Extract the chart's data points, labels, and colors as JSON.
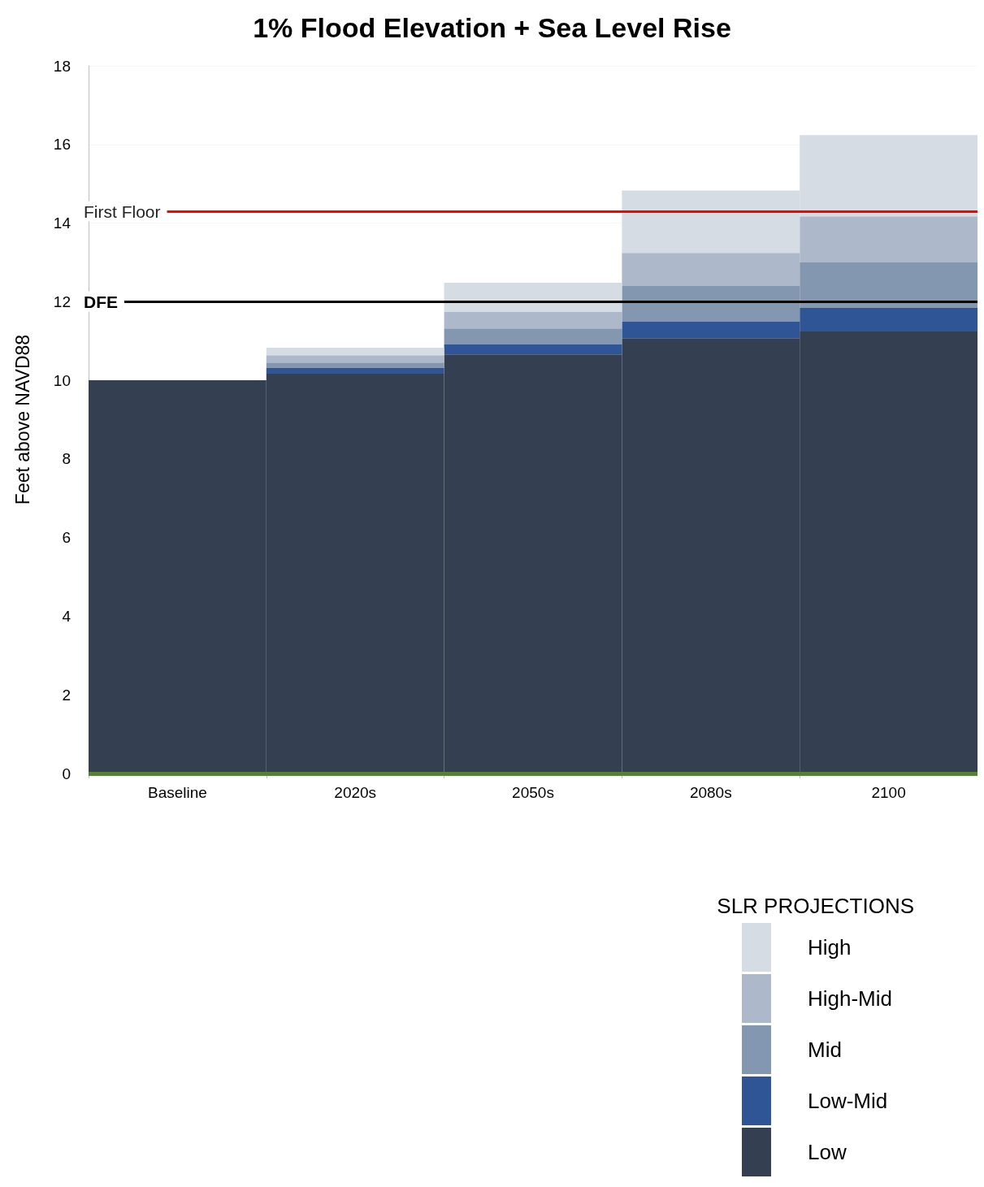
{
  "chart_data": {
    "type": "bar",
    "stacked": true,
    "title": "1% Flood Elevation + Sea Level Rise",
    "ylabel": "Feet above NAVD88",
    "legend_title": "SLR PROJECTIONS",
    "legend": "bottom right",
    "grid": "y",
    "categories": [
      "Baseline",
      "2020s",
      "2050s",
      "2080s",
      "2100"
    ],
    "ylim": [
      0,
      18
    ],
    "yticks": [
      0,
      2,
      4,
      6,
      8,
      10,
      12,
      14,
      16,
      18
    ],
    "series": [
      {
        "name": "Low",
        "color": "#343f51",
        "values": [
          10.0,
          10.17,
          10.66,
          11.07,
          11.24
        ]
      },
      {
        "name": "Low-Mid",
        "color": "#2f5597",
        "values": [
          0,
          0.14,
          0.25,
          0.42,
          0.6
        ]
      },
      {
        "name": "Mid",
        "color": "#8497b0",
        "values": [
          0,
          0.14,
          0.41,
          0.91,
          1.16
        ]
      },
      {
        "name": "High-Mid",
        "color": "#adb9ca",
        "values": [
          0,
          0.19,
          0.42,
          0.84,
          1.17
        ]
      },
      {
        "name": "High",
        "color": "#d6dce4",
        "values": [
          0,
          0.19,
          0.74,
          1.59,
          2.07
        ]
      }
    ],
    "ref_lines": [
      {
        "axis": "y",
        "value": 14.3,
        "label": "First Floor",
        "color": "#ff0000"
      },
      {
        "axis": "y",
        "value": 12,
        "label": "DFE",
        "color": "#000000"
      },
      {
        "axis": "y",
        "value": 0,
        "color": "#548235"
      }
    ]
  }
}
